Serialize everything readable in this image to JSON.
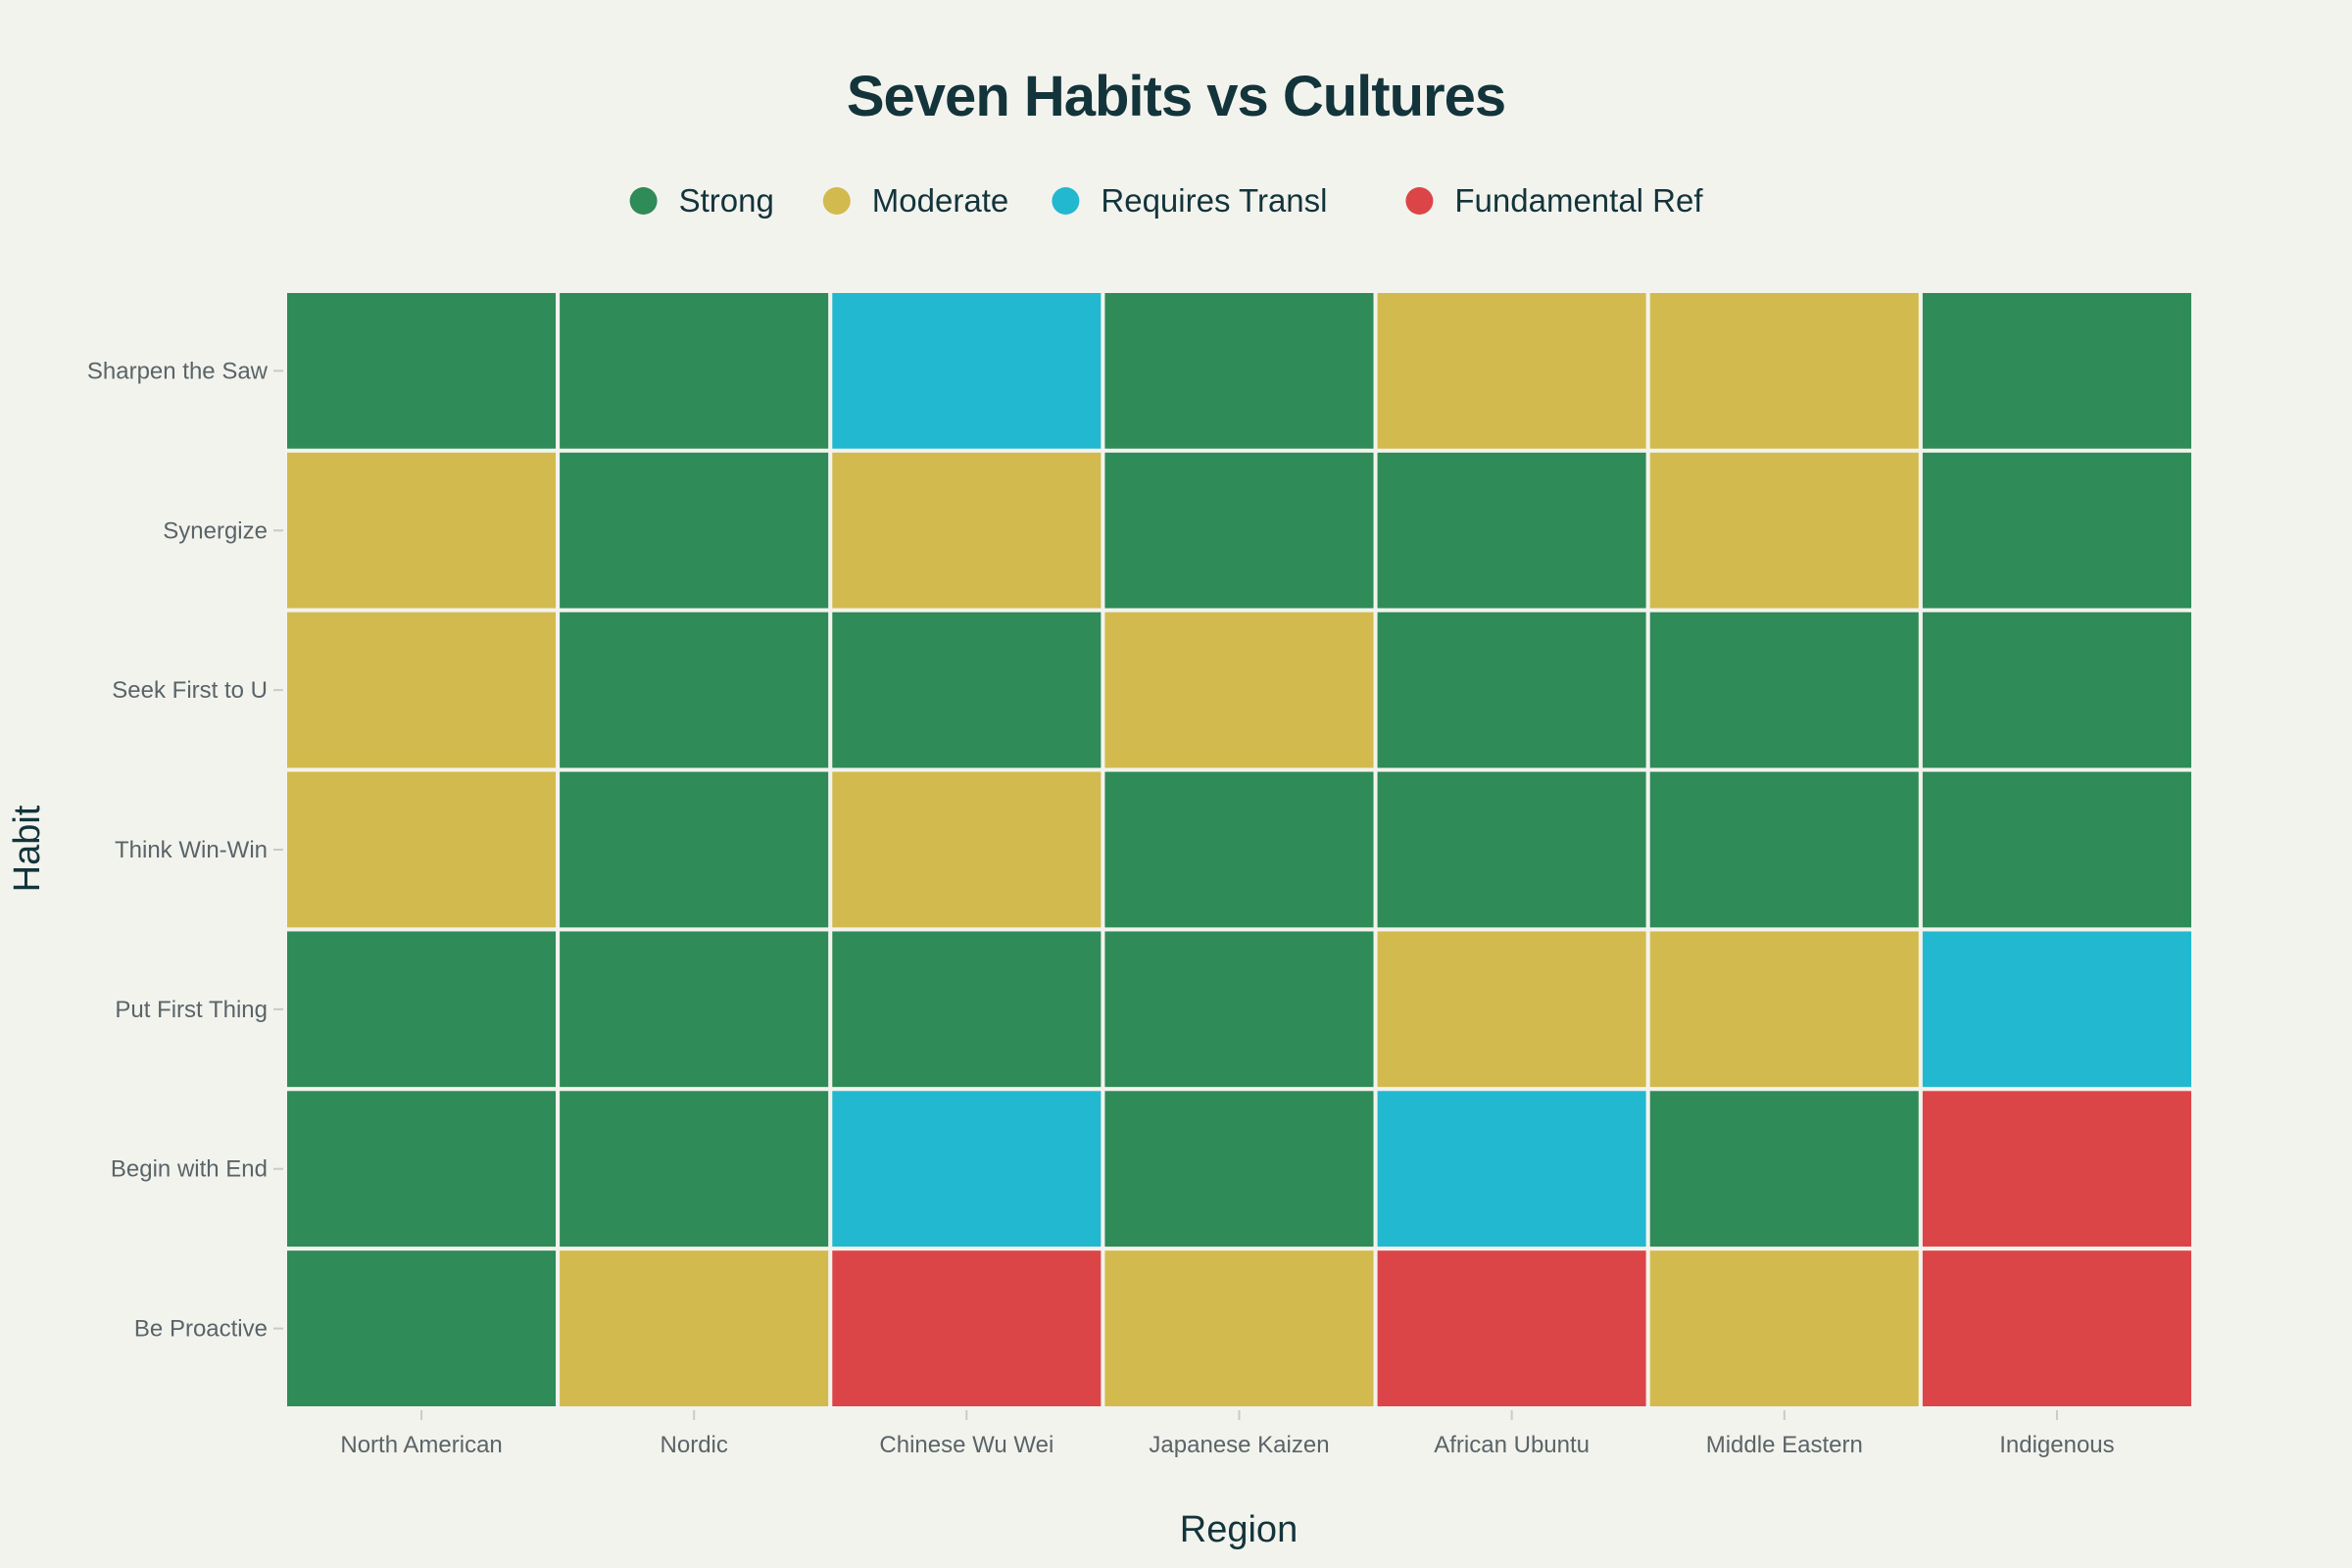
{
  "chart_data": {
    "type": "heatmap",
    "title": "Seven Habits vs Cultures",
    "xlabel": "Region",
    "ylabel": "Habit",
    "legend_position": "top-center",
    "grid": false,
    "categories_x": [
      "North American",
      "Nordic",
      "Chinese Wu Wei",
      "Japanese Kaizen",
      "African Ubuntu",
      "Middle Eastern",
      "Indigenous"
    ],
    "categories_y": [
      "Sharpen the Saw",
      "Synergize",
      "Seek First to U",
      "Think Win-Win",
      "Put First Thing",
      "Begin with End",
      "Be Proactive"
    ],
    "levels": [
      {
        "name": "Strong",
        "color": "#2f8b57"
      },
      {
        "name": "Moderate",
        "color": "#d3ba4e"
      },
      {
        "name": "Requires Transl",
        "color": "#22b8cf"
      },
      {
        "name": "Fundamental Ref",
        "color": "#dc4548"
      }
    ],
    "values": [
      [
        "Strong",
        "Strong",
        "Requires Transl",
        "Strong",
        "Moderate",
        "Moderate",
        "Strong"
      ],
      [
        "Moderate",
        "Strong",
        "Moderate",
        "Strong",
        "Strong",
        "Moderate",
        "Strong"
      ],
      [
        "Moderate",
        "Strong",
        "Strong",
        "Moderate",
        "Strong",
        "Strong",
        "Strong"
      ],
      [
        "Moderate",
        "Strong",
        "Moderate",
        "Strong",
        "Strong",
        "Strong",
        "Strong"
      ],
      [
        "Strong",
        "Strong",
        "Strong",
        "Strong",
        "Moderate",
        "Moderate",
        "Requires Transl"
      ],
      [
        "Strong",
        "Strong",
        "Requires Transl",
        "Strong",
        "Requires Transl",
        "Strong",
        "Fundamental Ref"
      ],
      [
        "Strong",
        "Moderate",
        "Fundamental Ref",
        "Moderate",
        "Fundamental Ref",
        "Moderate",
        "Fundamental Ref"
      ]
    ]
  }
}
